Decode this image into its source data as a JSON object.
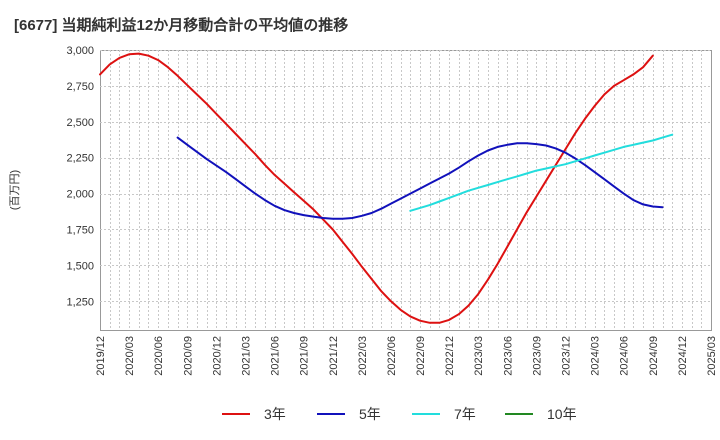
{
  "chart_data": {
    "type": "line",
    "title": "[6677]  当期純利益12か月移動合計の平均値の推移",
    "ylabel": "(百万円)",
    "xlabel": "",
    "ylim": [
      1050,
      3000
    ],
    "yticks": [
      1250,
      1500,
      1750,
      2000,
      2250,
      2500,
      2750,
      3000
    ],
    "ytick_labels": [
      "1,250",
      "1,500",
      "1,750",
      "2,000",
      "2,250",
      "2,500",
      "2,750",
      "3,000"
    ],
    "xticks": [
      "2019/12",
      "2020/03",
      "2020/06",
      "2020/09",
      "2020/12",
      "2021/03",
      "2021/06",
      "2021/09",
      "2021/12",
      "2022/03",
      "2022/06",
      "2022/09",
      "2022/12",
      "2023/03",
      "2023/06",
      "2023/09",
      "2023/12",
      "2024/03",
      "2024/06",
      "2024/09",
      "2024/12",
      "2025/03"
    ],
    "grid": true,
    "legend_position": "bottom",
    "series": [
      {
        "name": "3年",
        "color": "#dd1111",
        "start": "2019/12",
        "values": [
          2830,
          2900,
          2945,
          2970,
          2975,
          2960,
          2930,
          2880,
          2820,
          2755,
          2690,
          2625,
          2555,
          2485,
          2415,
          2345,
          2275,
          2200,
          2130,
          2070,
          2010,
          1950,
          1890,
          1820,
          1750,
          1665,
          1580,
          1490,
          1405,
          1320,
          1250,
          1190,
          1145,
          1115,
          1100,
          1100,
          1120,
          1160,
          1220,
          1300,
          1400,
          1510,
          1630,
          1750,
          1870,
          1980,
          2090,
          2200,
          2310,
          2420,
          2520,
          2610,
          2690,
          2750,
          2790,
          2830,
          2880,
          2960
        ]
      },
      {
        "name": "5年",
        "color": "#1111bb",
        "start": "2020/08",
        "values": [
          2390,
          2340,
          2290,
          2240,
          2195,
          2150,
          2100,
          2050,
          2000,
          1955,
          1915,
          1885,
          1865,
          1850,
          1840,
          1830,
          1825,
          1825,
          1830,
          1845,
          1865,
          1895,
          1930,
          1965,
          2000,
          2035,
          2070,
          2105,
          2140,
          2180,
          2225,
          2265,
          2300,
          2325,
          2340,
          2350,
          2350,
          2345,
          2335,
          2315,
          2285,
          2245,
          2200,
          2150,
          2100,
          2050,
          2000,
          1955,
          1925,
          1910,
          1905
        ]
      },
      {
        "name": "7年",
        "color": "#22dddd",
        "start": "2022/08",
        "values": [
          1880,
          1900,
          1920,
          1945,
          1970,
          1995,
          2020,
          2040,
          2060,
          2080,
          2100,
          2120,
          2140,
          2160,
          2175,
          2190,
          2205,
          2225,
          2245,
          2265,
          2285,
          2305,
          2325,
          2340,
          2355,
          2370,
          2390,
          2410
        ]
      },
      {
        "name": "10年",
        "color": "#228822",
        "start": "",
        "values": []
      }
    ]
  }
}
